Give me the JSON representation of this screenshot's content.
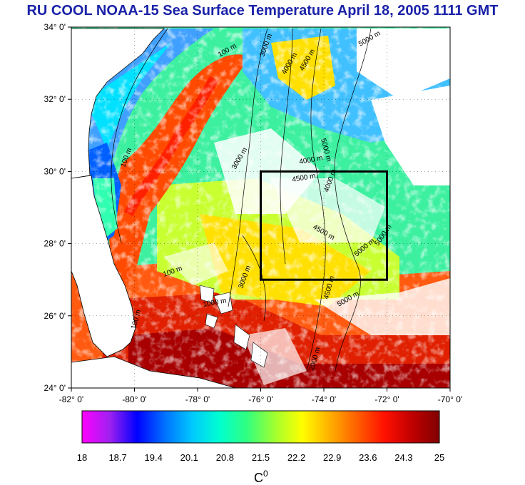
{
  "title": "RU COOL  NOAA-15 Sea Surface Temperature April 18, 2005 1111 GMT",
  "axes": {
    "lat_labels": [
      "34° 0'",
      "32° 0'",
      "30° 0'",
      "28° 0'",
      "26° 0'",
      "24° 0'"
    ],
    "lon_labels": [
      "-82° 0'",
      "-80° 0'",
      "-78° 0'",
      "-76° 0'",
      "-74° 0'",
      "-72° 0'",
      "-70° 0'"
    ],
    "lat_range": [
      24,
      34
    ],
    "lon_range": [
      -82,
      -70
    ]
  },
  "contour_labels": [
    "100 m",
    "3000 m",
    "4000 m",
    "4500 m",
    "5000 m",
    "1000 m",
    "2000 m"
  ],
  "study_box": {
    "lon_range": [
      -76,
      -72
    ],
    "lat_range": [
      27,
      30
    ]
  },
  "colorbar": {
    "min": 18,
    "max": 25,
    "tick_labels": [
      "18",
      "18.7",
      "19.4",
      "20.1",
      "20.8",
      "21.5",
      "22.2",
      "22.9",
      "23.6",
      "24.3",
      "25"
    ],
    "unit": "C",
    "unit_superscript": "0",
    "colors": [
      "#ff00ff",
      "#a020f0",
      "#0000ff",
      "#0070ff",
      "#00c8ff",
      "#00ffd0",
      "#30ff80",
      "#a0ff30",
      "#ffff00",
      "#ffb000",
      "#ff6000",
      "#ff1000",
      "#c00000",
      "#800000"
    ]
  },
  "colors": {
    "land": "#ffffff",
    "cloud": "#ffffff",
    "title": "#1a22a8",
    "box": "#000000"
  }
}
